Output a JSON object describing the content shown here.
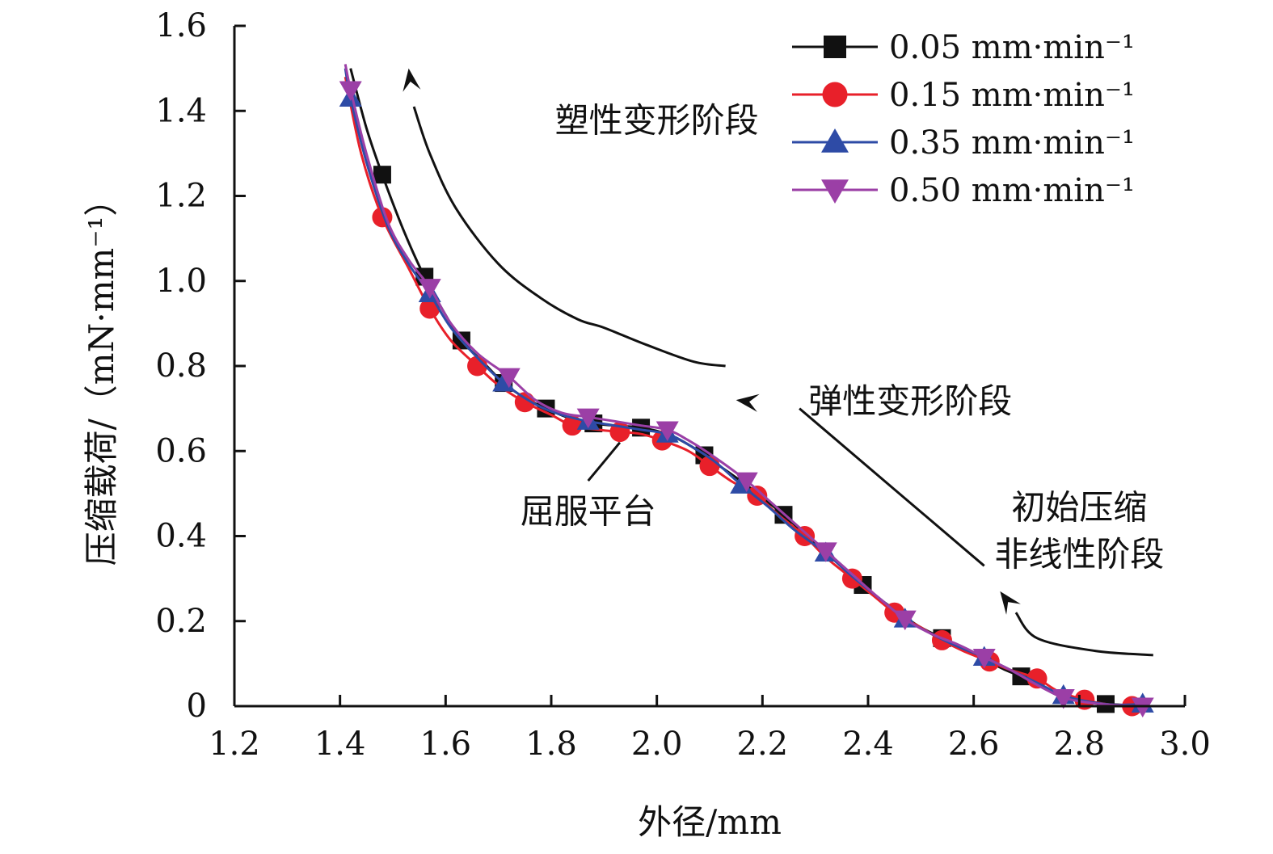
{
  "chart_data": {
    "type": "line",
    "xlabel": "外径/mm",
    "ylabel": "压缩载荷/（mN·mm⁻¹）",
    "xlim": [
      1.2,
      3.0
    ],
    "ylim": [
      0,
      1.6
    ],
    "xticks": [
      "1.2",
      "1.4",
      "1.6",
      "1.8",
      "2.0",
      "2.2",
      "2.4",
      "2.6",
      "2.8",
      "3.0"
    ],
    "yticks": [
      "0",
      "0.2",
      "0.4",
      "0.6",
      "0.8",
      "1.0",
      "1.2",
      "1.4",
      "1.6"
    ],
    "legend_position": "top-right",
    "grid": false,
    "series": [
      {
        "name": "0.05 mm·min⁻¹",
        "color": "#111111",
        "marker": "square",
        "line": [
          [
            1.42,
            1.5
          ],
          [
            1.45,
            1.36
          ],
          [
            1.48,
            1.25
          ],
          [
            1.52,
            1.12
          ],
          [
            1.56,
            1.01
          ],
          [
            1.6,
            0.92
          ],
          [
            1.63,
            0.86
          ],
          [
            1.67,
            0.81
          ],
          [
            1.71,
            0.76
          ],
          [
            1.75,
            0.725
          ],
          [
            1.79,
            0.7
          ],
          [
            1.84,
            0.675
          ],
          [
            1.88,
            0.665
          ],
          [
            1.92,
            0.66
          ],
          [
            1.97,
            0.655
          ],
          [
            2.02,
            0.64
          ],
          [
            2.06,
            0.615
          ],
          [
            2.09,
            0.59
          ],
          [
            2.13,
            0.555
          ],
          [
            2.17,
            0.52
          ],
          [
            2.2,
            0.49
          ],
          [
            2.24,
            0.45
          ],
          [
            2.28,
            0.405
          ],
          [
            2.32,
            0.36
          ],
          [
            2.36,
            0.32
          ],
          [
            2.39,
            0.285
          ],
          [
            2.43,
            0.245
          ],
          [
            2.47,
            0.21
          ],
          [
            2.5,
            0.185
          ],
          [
            2.54,
            0.16
          ],
          [
            2.58,
            0.135
          ],
          [
            2.62,
            0.11
          ],
          [
            2.66,
            0.085
          ],
          [
            2.69,
            0.07
          ],
          [
            2.73,
            0.045
          ],
          [
            2.76,
            0.025
          ],
          [
            2.8,
            0.012
          ],
          [
            2.85,
            0.005
          ],
          [
            2.9,
            0.002
          ],
          [
            2.92,
            0.0
          ]
        ],
        "points": [
          [
            1.48,
            1.25
          ],
          [
            1.56,
            1.01
          ],
          [
            1.63,
            0.86
          ],
          [
            1.71,
            0.76
          ],
          [
            1.79,
            0.7
          ],
          [
            1.88,
            0.665
          ],
          [
            1.97,
            0.655
          ],
          [
            2.09,
            0.59
          ],
          [
            2.24,
            0.45
          ],
          [
            2.39,
            0.285
          ],
          [
            2.54,
            0.16
          ],
          [
            2.69,
            0.07
          ],
          [
            2.85,
            0.005
          ]
        ]
      },
      {
        "name": "0.15 mm·min⁻¹",
        "color": "#E8202A",
        "marker": "circle",
        "line": [
          [
            1.41,
            1.48
          ],
          [
            1.44,
            1.3
          ],
          [
            1.48,
            1.15
          ],
          [
            1.53,
            1.03
          ],
          [
            1.57,
            0.935
          ],
          [
            1.61,
            0.86
          ],
          [
            1.66,
            0.8
          ],
          [
            1.7,
            0.755
          ],
          [
            1.75,
            0.715
          ],
          [
            1.8,
            0.685
          ],
          [
            1.84,
            0.66
          ],
          [
            1.89,
            0.65
          ],
          [
            1.93,
            0.645
          ],
          [
            1.97,
            0.64
          ],
          [
            2.01,
            0.625
          ],
          [
            2.06,
            0.6
          ],
          [
            2.1,
            0.565
          ],
          [
            2.14,
            0.53
          ],
          [
            2.19,
            0.495
          ],
          [
            2.23,
            0.45
          ],
          [
            2.28,
            0.4
          ],
          [
            2.32,
            0.35
          ],
          [
            2.37,
            0.3
          ],
          [
            2.41,
            0.26
          ],
          [
            2.45,
            0.22
          ],
          [
            2.5,
            0.185
          ],
          [
            2.54,
            0.155
          ],
          [
            2.58,
            0.13
          ],
          [
            2.63,
            0.105
          ],
          [
            2.67,
            0.085
          ],
          [
            2.72,
            0.065
          ],
          [
            2.76,
            0.035
          ],
          [
            2.81,
            0.015
          ],
          [
            2.85,
            0.005
          ],
          [
            2.9,
            0.0
          ],
          [
            2.93,
            0.0
          ]
        ],
        "points": [
          [
            1.48,
            1.15
          ],
          [
            1.57,
            0.935
          ],
          [
            1.66,
            0.8
          ],
          [
            1.75,
            0.715
          ],
          [
            1.84,
            0.66
          ],
          [
            1.93,
            0.645
          ],
          [
            2.01,
            0.625
          ],
          [
            2.1,
            0.565
          ],
          [
            2.19,
            0.495
          ],
          [
            2.28,
            0.4
          ],
          [
            2.37,
            0.3
          ],
          [
            2.45,
            0.22
          ],
          [
            2.54,
            0.155
          ],
          [
            2.63,
            0.105
          ],
          [
            2.72,
            0.065
          ],
          [
            2.81,
            0.015
          ],
          [
            2.9,
            0.0
          ]
        ]
      },
      {
        "name": "0.35 mm·min⁻¹",
        "color": "#2E4BA6",
        "marker": "triangle-up",
        "line": [
          [
            1.41,
            1.5
          ],
          [
            1.42,
            1.43
          ],
          [
            1.45,
            1.28
          ],
          [
            1.49,
            1.13
          ],
          [
            1.53,
            1.04
          ],
          [
            1.57,
            0.97
          ],
          [
            1.61,
            0.89
          ],
          [
            1.66,
            0.82
          ],
          [
            1.71,
            0.76
          ],
          [
            1.77,
            0.71
          ],
          [
            1.82,
            0.685
          ],
          [
            1.87,
            0.67
          ],
          [
            1.92,
            0.66
          ],
          [
            1.97,
            0.65
          ],
          [
            2.02,
            0.64
          ],
          [
            2.06,
            0.615
          ],
          [
            2.11,
            0.575
          ],
          [
            2.16,
            0.52
          ],
          [
            2.21,
            0.47
          ],
          [
            2.26,
            0.415
          ],
          [
            2.32,
            0.36
          ],
          [
            2.37,
            0.305
          ],
          [
            2.42,
            0.255
          ],
          [
            2.47,
            0.205
          ],
          [
            2.52,
            0.17
          ],
          [
            2.57,
            0.14
          ],
          [
            2.62,
            0.115
          ],
          [
            2.67,
            0.085
          ],
          [
            2.72,
            0.055
          ],
          [
            2.77,
            0.025
          ],
          [
            2.82,
            0.01
          ],
          [
            2.87,
            0.003
          ],
          [
            2.92,
            0.005
          ]
        ],
        "points": [
          [
            1.42,
            1.43
          ],
          [
            1.57,
            0.97
          ],
          [
            1.71,
            0.76
          ],
          [
            1.87,
            0.67
          ],
          [
            2.02,
            0.64
          ],
          [
            2.16,
            0.52
          ],
          [
            2.32,
            0.36
          ],
          [
            2.47,
            0.205
          ],
          [
            2.62,
            0.115
          ],
          [
            2.77,
            0.025
          ],
          [
            2.92,
            0.005
          ]
        ]
      },
      {
        "name": "0.50 mm·min⁻¹",
        "color": "#9B3FA6",
        "marker": "triangle-down",
        "line": [
          [
            1.41,
            1.51
          ],
          [
            1.42,
            1.45
          ],
          [
            1.45,
            1.3
          ],
          [
            1.49,
            1.14
          ],
          [
            1.53,
            1.05
          ],
          [
            1.57,
            0.985
          ],
          [
            1.61,
            0.9
          ],
          [
            1.66,
            0.83
          ],
          [
            1.72,
            0.775
          ],
          [
            1.77,
            0.72
          ],
          [
            1.82,
            0.69
          ],
          [
            1.87,
            0.68
          ],
          [
            1.92,
            0.67
          ],
          [
            1.97,
            0.66
          ],
          [
            2.02,
            0.65
          ],
          [
            2.06,
            0.625
          ],
          [
            2.11,
            0.585
          ],
          [
            2.17,
            0.53
          ],
          [
            2.22,
            0.475
          ],
          [
            2.27,
            0.42
          ],
          [
            2.32,
            0.365
          ],
          [
            2.37,
            0.31
          ],
          [
            2.42,
            0.255
          ],
          [
            2.47,
            0.205
          ],
          [
            2.52,
            0.17
          ],
          [
            2.57,
            0.145
          ],
          [
            2.62,
            0.115
          ],
          [
            2.67,
            0.085
          ],
          [
            2.72,
            0.05
          ],
          [
            2.77,
            0.02
          ],
          [
            2.82,
            0.008
          ],
          [
            2.87,
            0.002
          ],
          [
            2.92,
            0.0
          ]
        ],
        "points": [
          [
            1.42,
            1.45
          ],
          [
            1.57,
            0.985
          ],
          [
            1.72,
            0.775
          ],
          [
            1.87,
            0.68
          ],
          [
            2.02,
            0.65
          ],
          [
            2.17,
            0.53
          ],
          [
            2.32,
            0.365
          ],
          [
            2.47,
            0.205
          ],
          [
            2.62,
            0.115
          ],
          [
            2.77,
            0.02
          ],
          [
            2.92,
            0.0
          ]
        ]
      }
    ],
    "annotations": [
      {
        "text": "塑性变形阶段",
        "x": 2.0,
        "y": 1.35
      },
      {
        "text": "弹性变形阶段",
        "x": 2.48,
        "y": 0.69
      },
      {
        "text": "屈服平台",
        "x": 1.87,
        "y": 0.43
      },
      {
        "text": "初始压缩",
        "x": 2.8,
        "y": 0.44
      },
      {
        "text": "非线性阶段",
        "x": 2.8,
        "y": 0.33
      }
    ],
    "arrows": [
      {
        "label": "塑性变形阶段",
        "path": [
          [
            2.13,
            0.8
          ],
          [
            2.07,
            0.81
          ],
          [
            1.98,
            0.85
          ],
          [
            1.9,
            0.89
          ],
          [
            1.85,
            0.91
          ],
          [
            1.78,
            0.96
          ],
          [
            1.7,
            1.04
          ],
          [
            1.62,
            1.17
          ],
          [
            1.57,
            1.3
          ],
          [
            1.54,
            1.41
          ]
        ],
        "head": [
          1.53,
          1.5
        ]
      },
      {
        "label": "弹性变形阶段",
        "path": [
          [
            2.62,
            0.33
          ],
          [
            2.27,
            0.7
          ]
        ],
        "head": [
          2.15,
          0.72
        ]
      },
      {
        "label": "屈服平台",
        "path": [
          [
            1.87,
            0.53
          ],
          [
            1.93,
            0.62
          ]
        ],
        "head": null
      },
      {
        "label": "初始压缩 非线性阶段",
        "path": [
          [
            2.94,
            0.12
          ],
          [
            2.83,
            0.13
          ],
          [
            2.72,
            0.16
          ],
          [
            2.68,
            0.22
          ]
        ],
        "head": [
          2.65,
          0.27
        ]
      }
    ]
  }
}
